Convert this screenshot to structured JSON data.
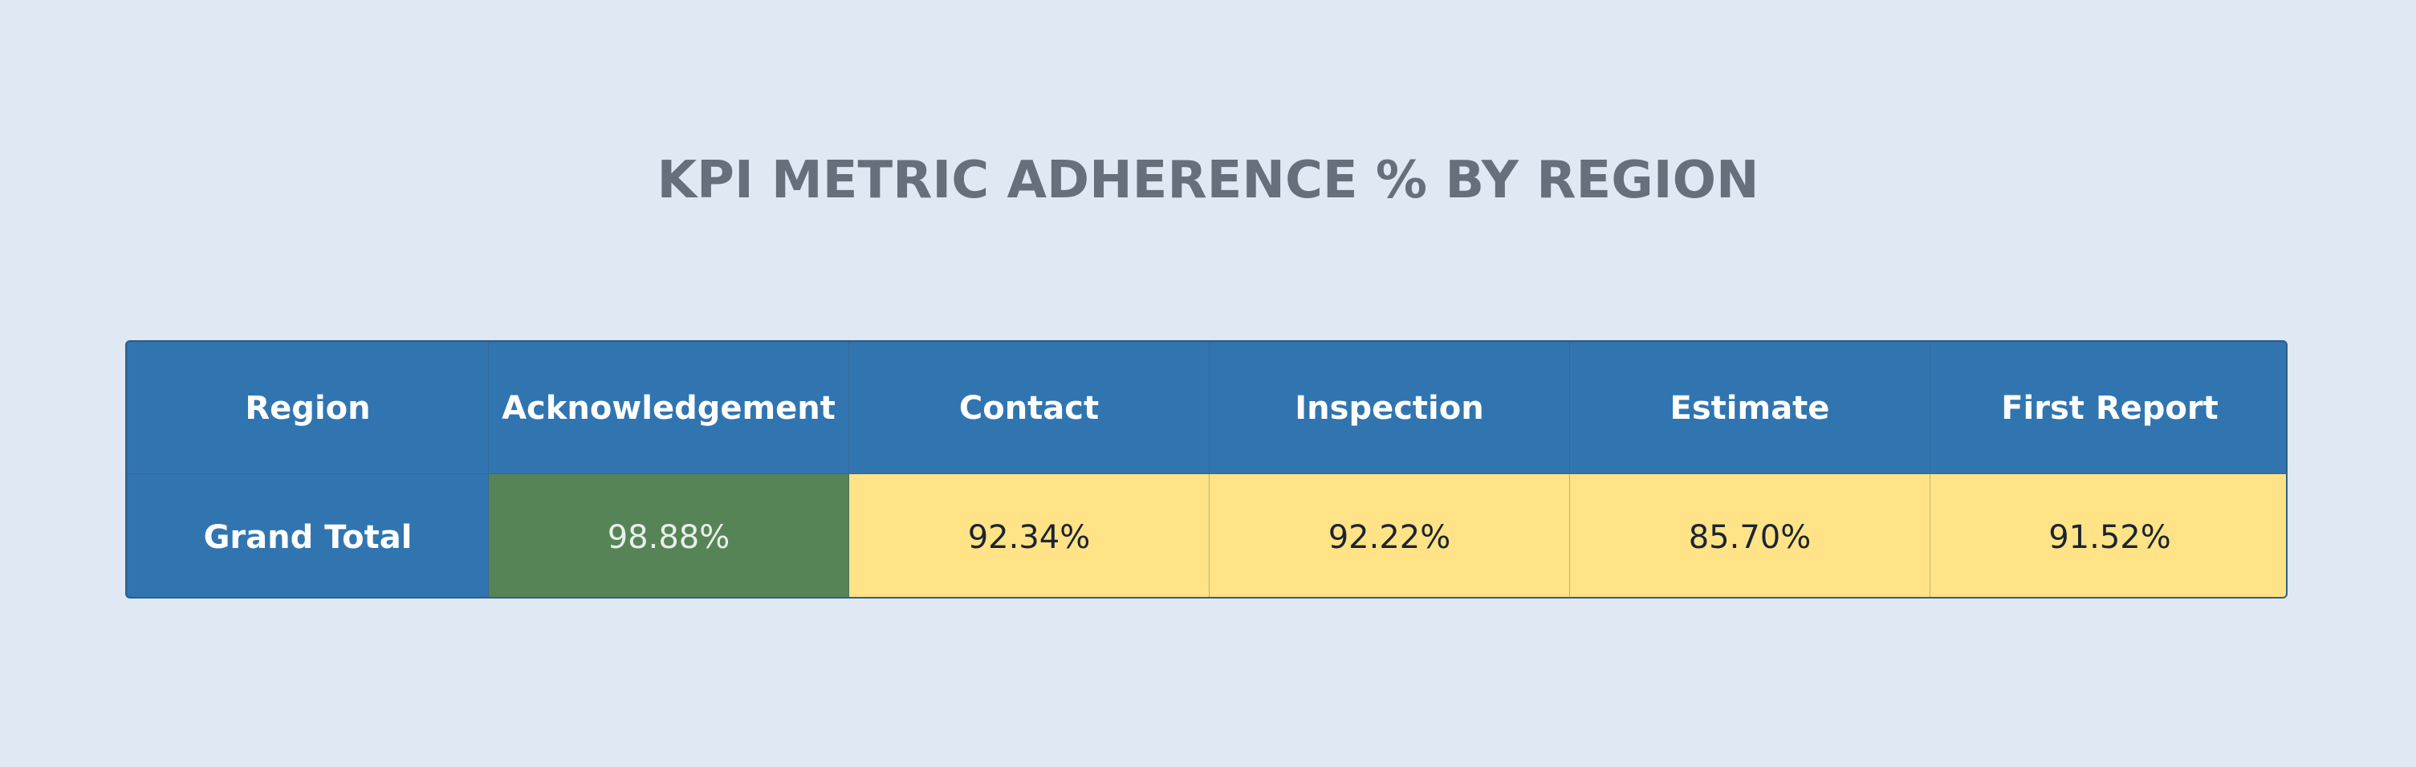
{
  "chart_data": {
    "type": "table",
    "title": "KPI METRIC ADHERENCE % BY REGION",
    "columns": [
      "Region",
      "Acknowledgement",
      "Contact",
      "Inspection",
      "Estimate",
      "First Report"
    ],
    "rows": [
      {
        "label": "Grand Total",
        "values": [
          "98.88%",
          "92.34%",
          "92.22%",
          "85.70%",
          "91.52%"
        ],
        "numeric": [
          98.88,
          92.34,
          92.22,
          85.7,
          91.52
        ],
        "status": [
          "good",
          "warn",
          "warn",
          "warn",
          "warn"
        ]
      }
    ]
  },
  "colors": {
    "background": "#dfe8f3",
    "header": "#3175b0",
    "good": "#568456",
    "good_text": "#e8efe8",
    "warn": "#ffe386",
    "warn_text": "#1c2430",
    "title": "#666f7b"
  }
}
